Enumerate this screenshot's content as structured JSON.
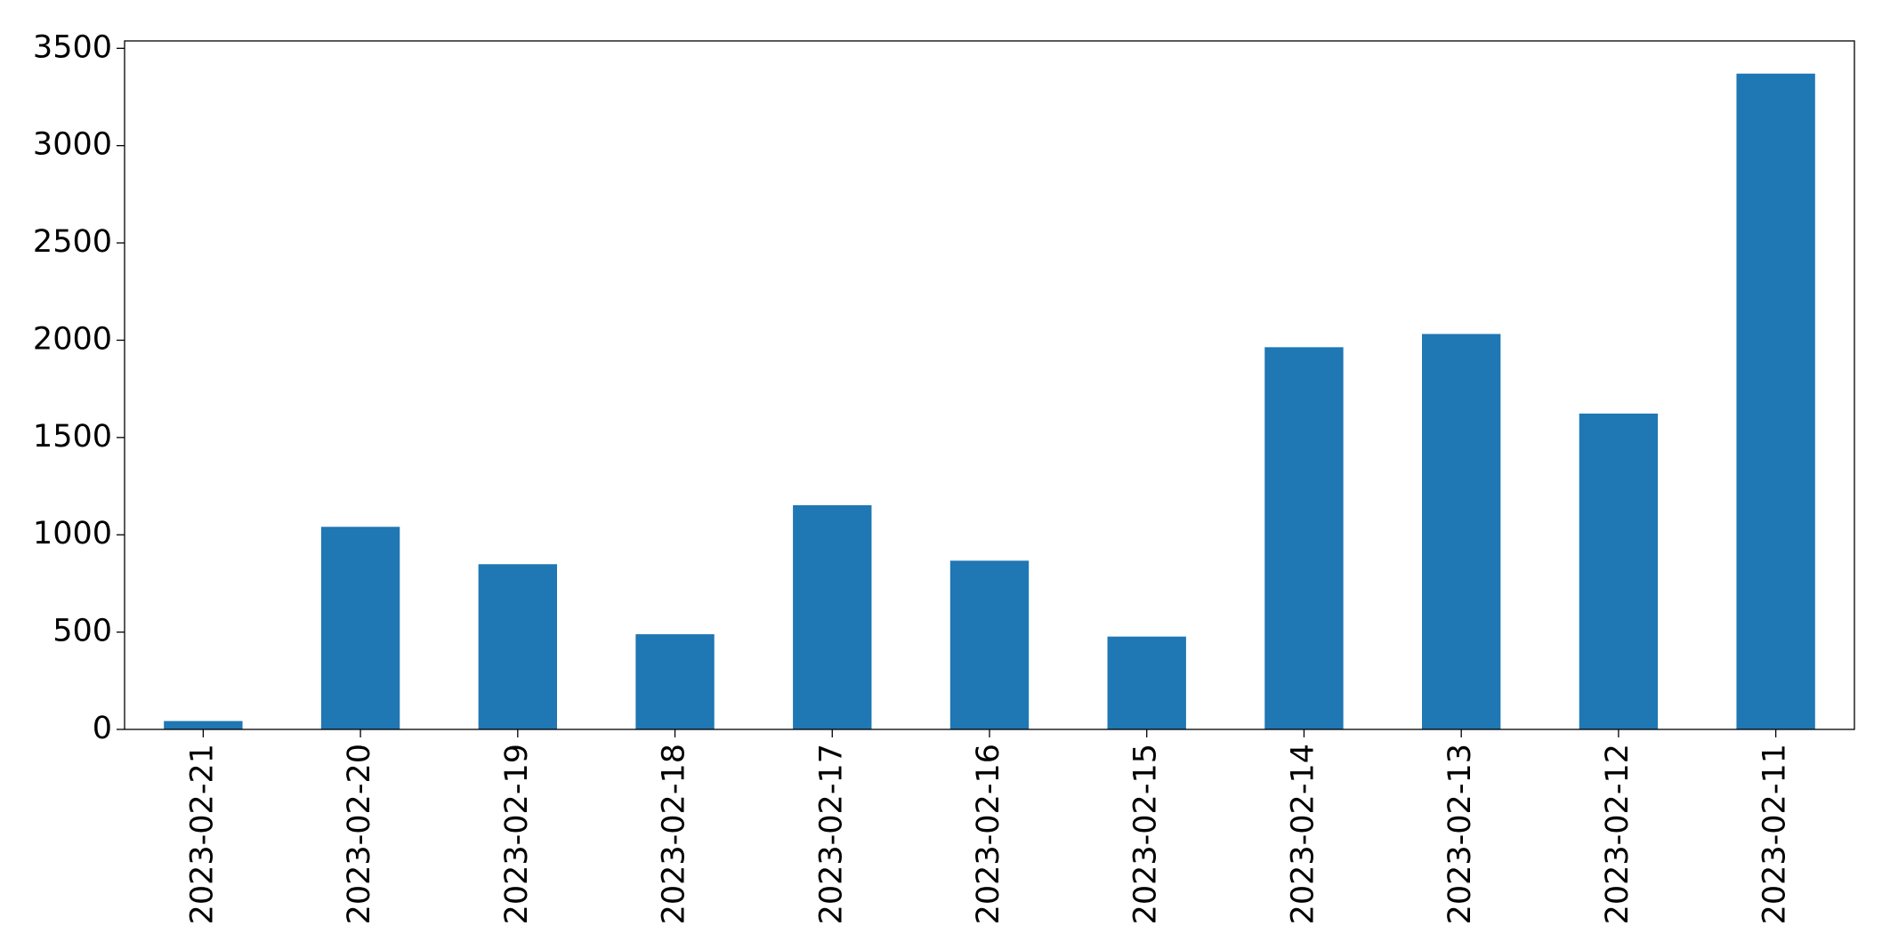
{
  "chart_data": {
    "type": "bar",
    "categories": [
      "2023-02-21",
      "2023-02-20",
      "2023-02-19",
      "2023-02-18",
      "2023-02-17",
      "2023-02-16",
      "2023-02-15",
      "2023-02-14",
      "2023-02-13",
      "2023-02-12",
      "2023-02-11"
    ],
    "values": [
      43,
      1041,
      849,
      489,
      1152,
      867,
      477,
      1964,
      2032,
      1623,
      3370
    ],
    "color": "#1f77b4",
    "ylim": [
      0,
      3538
    ],
    "yticks": [
      0,
      500,
      1000,
      1500,
      2000,
      2500,
      3000,
      3500
    ],
    "grid": false
  }
}
